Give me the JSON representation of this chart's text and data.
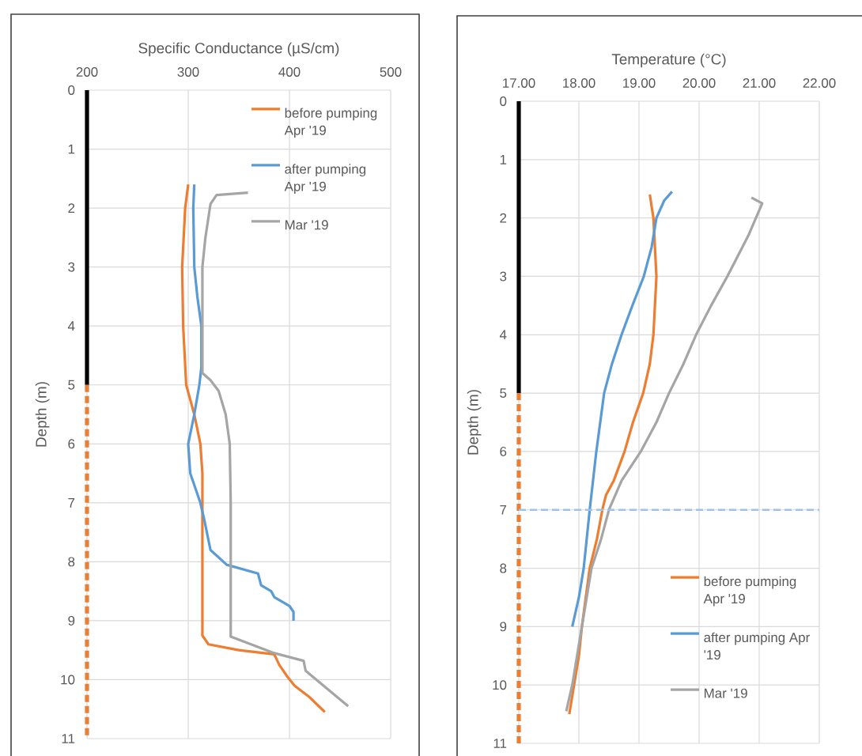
{
  "chart_data": [
    {
      "type": "line",
      "xlabel": "Specific Conductance (µS/cm)",
      "ylabel": "Depth (m)",
      "xlim": [
        200,
        500
      ],
      "xticks": [
        200,
        300,
        400,
        500
      ],
      "ylim": [
        11,
        0
      ],
      "yticks": [
        0,
        1,
        2,
        3,
        4,
        5,
        6,
        7,
        8,
        9,
        10,
        11
      ],
      "grid": true,
      "legend": "top right",
      "series": [
        {
          "name": "before pumping Apr '19",
          "color": "#ed7d31",
          "x": [
            300,
            297,
            294,
            295,
            298,
            306,
            312,
            314,
            314,
            320,
            350,
            385,
            390,
            398,
            405,
            420,
            432,
            435
          ],
          "values": [
            1.6,
            2,
            3,
            4,
            5,
            5.5,
            6,
            6.5,
            9.25,
            9.4,
            9.5,
            9.57,
            9.75,
            9.95,
            10.1,
            10.3,
            10.5,
            10.55
          ]
        },
        {
          "name": "after pumping Apr '19",
          "color": "#5b9bd5",
          "x": [
            306,
            305,
            306,
            309,
            313,
            313,
            311,
            306,
            300,
            302,
            312,
            316,
            322,
            338,
            369,
            372,
            382,
            385,
            400,
            404,
            404
          ],
          "values": [
            1.6,
            2,
            3,
            3.5,
            4,
            4.7,
            5,
            5.5,
            6,
            6.5,
            7,
            7.3,
            7.8,
            8.05,
            8.2,
            8.4,
            8.5,
            8.6,
            8.75,
            8.85,
            9
          ]
        },
        {
          "name": "Mar '19",
          "color": "#a5a5a5",
          "x": [
            359,
            328,
            322,
            317,
            314,
            314,
            322,
            330,
            337,
            341,
            342,
            342,
            385,
            414,
            416,
            458
          ],
          "values": [
            1.74,
            1.78,
            1.93,
            2.5,
            3,
            4.8,
            4.92,
            5.1,
            5.5,
            6,
            7,
            9.27,
            9.55,
            9.68,
            9.85,
            10.45
          ]
        },
        {
          "color": "#000000",
          "x": [
            200,
            200
          ],
          "values": [
            0,
            5
          ]
        },
        {
          "color": "#ed7d31",
          "line_style": "dashed",
          "x": [
            200,
            200
          ],
          "values": [
            5,
            11
          ]
        }
      ]
    },
    {
      "type": "line",
      "xlabel": "Temperature (°C)",
      "ylabel": "Depth (m)",
      "xlim": [
        17,
        22
      ],
      "xticks": [
        {
          "value": 17,
          "label": "17.00"
        },
        {
          "value": 18,
          "label": "18.00"
        },
        {
          "value": 19,
          "label": "19.00"
        },
        {
          "value": 20,
          "label": "20.00"
        },
        {
          "value": 21,
          "label": "21.00"
        },
        {
          "value": 22,
          "label": "22.00"
        }
      ],
      "ylim": [
        11,
        0
      ],
      "yticks": [
        0,
        1,
        2,
        3,
        4,
        5,
        6,
        7,
        8,
        9,
        10,
        11
      ],
      "grid": true,
      "legend": "bottom right",
      "ref_lines": [
        {
          "axis": "y",
          "value": 7,
          "color": "#9dc3e6",
          "line_style": "dashed"
        }
      ],
      "series": [
        {
          "name": "before pumping Apr '19",
          "color": "#ed7d31",
          "x": [
            19.18,
            19.24,
            19.29,
            19.24,
            19.18,
            19.07,
            18.9,
            18.76,
            18.58,
            18.45,
            18.39,
            18.3,
            18.18,
            18.05,
            18.0,
            17.92,
            17.84
          ],
          "values": [
            1.6,
            2,
            3,
            4,
            4.5,
            5,
            5.5,
            6,
            6.5,
            6.75,
            7,
            7.5,
            8,
            9,
            9.5,
            10,
            10.5
          ]
        },
        {
          "name": "after pumping Apr '19",
          "color": "#5b9bd5",
          "x": [
            19.55,
            19.42,
            19.29,
            19.21,
            19.08,
            18.89,
            18.71,
            18.55,
            18.42,
            18.29,
            18.18,
            18.08,
            18.0,
            17.89
          ],
          "values": [
            1.55,
            1.7,
            2,
            2.5,
            3,
            3.5,
            4,
            4.5,
            5,
            6,
            7,
            8,
            8.5,
            9
          ]
        },
        {
          "name": "Mar '19",
          "color": "#a5a5a5",
          "x": [
            20.87,
            21.05,
            20.82,
            20.47,
            20.2,
            19.95,
            19.74,
            19.5,
            19.29,
            19.03,
            18.71,
            18.5,
            18.37,
            18.21,
            18.05,
            17.97,
            17.89,
            17.79
          ],
          "values": [
            1.65,
            1.75,
            2.3,
            3,
            3.5,
            4,
            4.5,
            5,
            5.5,
            6,
            6.5,
            7,
            7.5,
            8,
            9,
            9.5,
            10,
            10.45
          ]
        },
        {
          "color": "#000000",
          "x": [
            17,
            17
          ],
          "values": [
            0,
            5
          ]
        },
        {
          "color": "#ed7d31",
          "line_style": "dashed",
          "x": [
            17,
            17
          ],
          "values": [
            5,
            11
          ]
        }
      ]
    }
  ]
}
